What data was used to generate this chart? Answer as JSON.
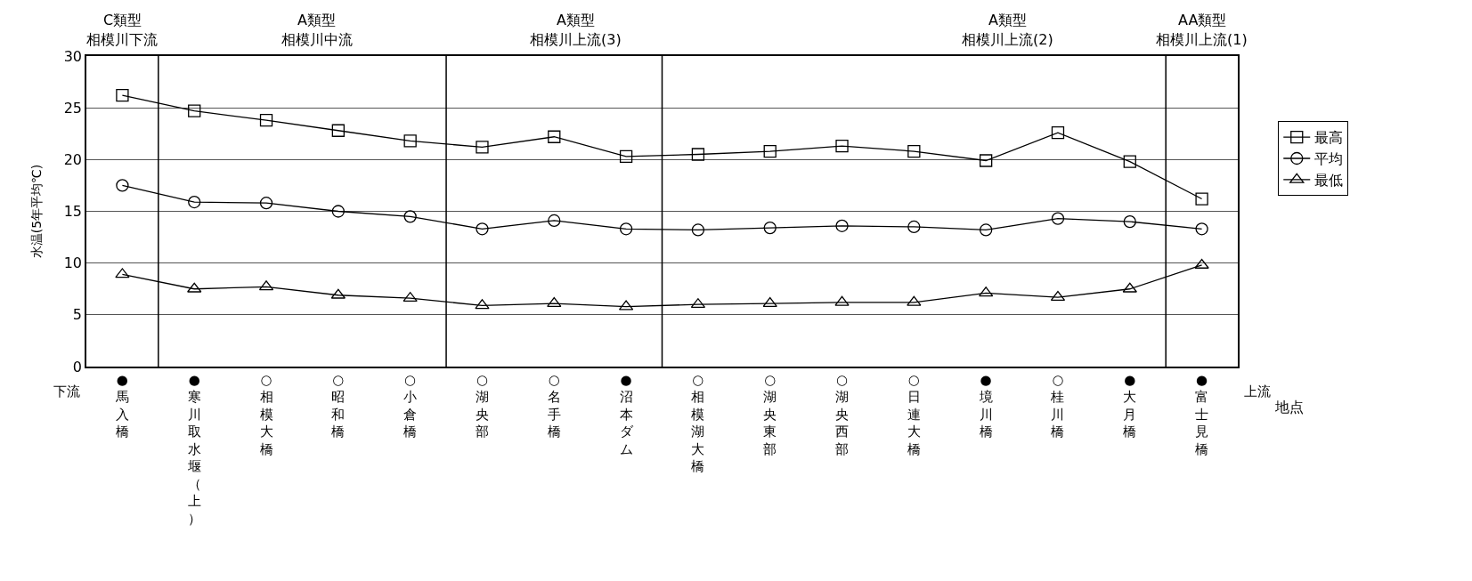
{
  "chart_data": {
    "type": "line",
    "ylabel": "水温(5年平均℃)",
    "xlabel": "地点",
    "categories": [
      "●馬入橋",
      "●寒川取水堰（上）",
      "○相模大橋",
      "○昭和橋",
      "○小倉橋",
      "○湖央部",
      "○名手橋",
      "●沼本ダム",
      "○相模湖大橋",
      "○湖央東部",
      "○湖央西部",
      "○日連大橋",
      "●境川橋",
      "○桂川橋",
      "●大月橋",
      "●富士見橋"
    ],
    "series": [
      {
        "name": "最高",
        "color": "#000000",
        "marker": "square",
        "values": [
          26.2,
          24.7,
          23.8,
          22.8,
          21.8,
          21.2,
          22.2,
          20.3,
          20.5,
          20.8,
          21.3,
          20.8,
          19.9,
          22.6,
          19.8,
          16.2
        ]
      },
      {
        "name": "平均",
        "color": "#000000",
        "marker": "circle",
        "values": [
          17.5,
          15.9,
          15.8,
          15.0,
          14.5,
          13.3,
          14.1,
          13.3,
          13.2,
          13.4,
          13.6,
          13.5,
          13.2,
          14.3,
          14.0,
          13.3
        ]
      },
      {
        "name": "最低",
        "color": "#000000",
        "marker": "triangle",
        "values": [
          8.9,
          7.5,
          7.7,
          6.9,
          6.6,
          5.9,
          6.1,
          5.8,
          6.0,
          6.1,
          6.2,
          6.2,
          7.1,
          6.7,
          7.5,
          9.8
        ]
      }
    ],
    "annotations": [
      "下流",
      "上流",
      "C類型",
      "相模川下流",
      "A類型",
      "相模川中流",
      "A類型",
      "相模川上流(3)",
      "A類型",
      "相模川上流(2)",
      "AA類型",
      "相模川上流(1)"
    ],
    "ylim": [
      0,
      30
    ],
    "yticks": [
      0,
      5,
      10,
      15,
      20,
      25,
      30
    ],
    "grid": "y",
    "legend": "right",
    "line_style": "solid"
  }
}
